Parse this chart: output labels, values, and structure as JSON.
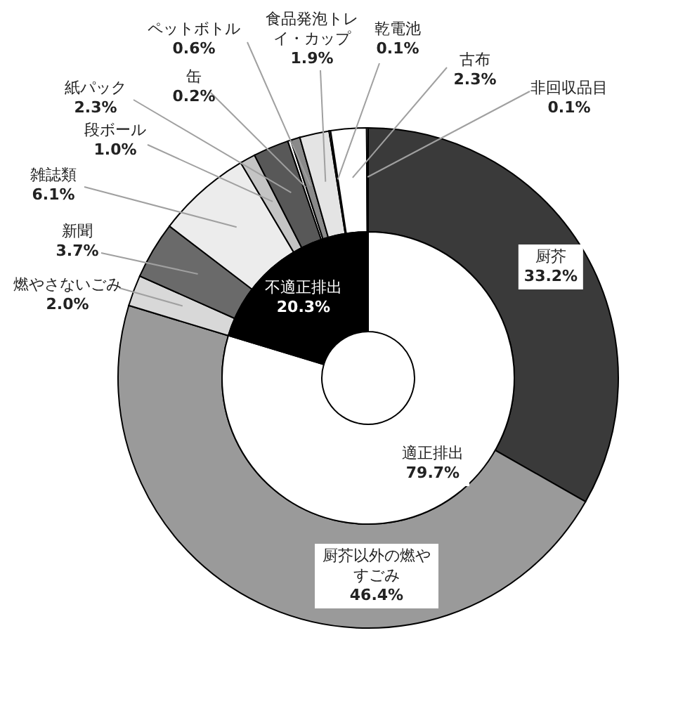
{
  "chart_data": [
    {
      "type": "donut",
      "categories": [
        "厨芥",
        "厨芥以外の燃やすごみ",
        "燃やさないごみ",
        "新聞",
        "雑誌類",
        "段ボール",
        "紙パック",
        "缶",
        "ペットボトル",
        "食品発泡トレイ・カップ",
        "乾電池",
        "古布",
        "非回収品目"
      ],
      "values": [
        33.2,
        46.4,
        2.0,
        3.7,
        6.1,
        1.0,
        2.3,
        0.2,
        0.6,
        1.9,
        0.1,
        2.3,
        0.1
      ],
      "value_labels": [
        "33.2%",
        "46.4%",
        "2.0%",
        "3.7%",
        "6.1%",
        "1.0%",
        "2.3%",
        "0.2%",
        "0.6%",
        "1.9%",
        "0.1%",
        "2.3%",
        "0.1%"
      ],
      "colors": [
        "#3a3a3a",
        "#9a9a9a",
        "#d8d8d8",
        "#6a6a6a",
        "#ececec",
        "#c4c4c4",
        "#585858",
        "#ffffff",
        "#8a8a8a",
        "#e4e4e4",
        "#ffffff",
        "#ffffff",
        "#ffffff"
      ]
    },
    {
      "type": "donut",
      "categories": [
        "適正排出",
        "不適正排出"
      ],
      "values": [
        79.7,
        20.3
      ],
      "value_labels": [
        "79.7%",
        "20.3%"
      ],
      "colors": [
        "#ffffff",
        "#000000"
      ]
    }
  ]
}
